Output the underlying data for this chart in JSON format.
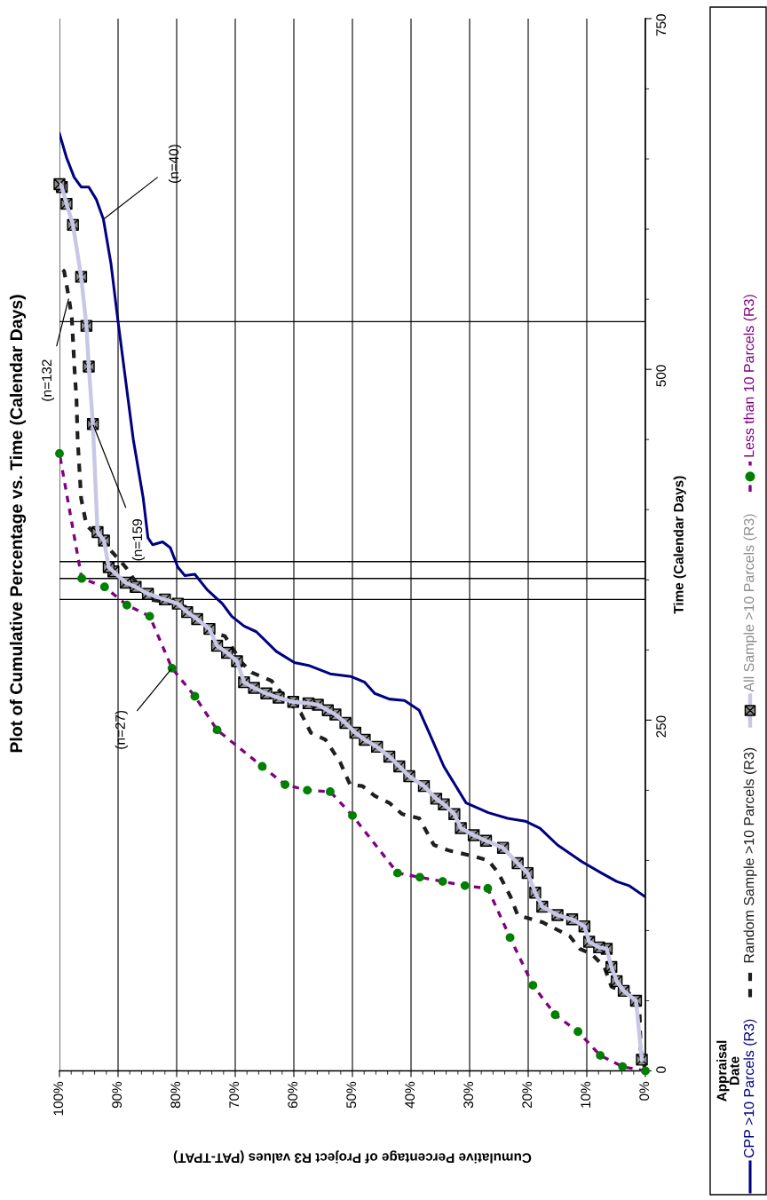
{
  "chart_data": {
    "type": "line",
    "title": "Plot of Cumulative Percentage vs. Time (Calendar Days)",
    "ylabel": "Time (Calendar Days)",
    "xlabel": "Cumulative Percentage of Project R3 values (PAT-TPAT)",
    "ylim": [
      0,
      750
    ],
    "yticks": [
      0,
      250,
      500,
      750
    ],
    "xlim": [
      100,
      0
    ],
    "xticks": [
      {
        "value": 0,
        "label": "0%"
      },
      {
        "value": 10,
        "label": "10%"
      },
      {
        "value": 20,
        "label": "20%"
      },
      {
        "value": 30,
        "label": "30%"
      },
      {
        "value": 40,
        "label": "40%"
      },
      {
        "value": 50,
        "label": "50%"
      },
      {
        "value": 60,
        "label": "60%"
      },
      {
        "value": 70,
        "label": "70%"
      },
      {
        "value": 80,
        "label": "80%"
      },
      {
        "value": 90,
        "label": "90%"
      },
      {
        "value": 100,
        "label": "100%"
      }
    ],
    "grid": "x",
    "legend": "right",
    "series": [
      {
        "name": "CPP >10 Parcels (R3)",
        "color": "#000080",
        "line_style": "solid",
        "marker": "none",
        "values": [
          124,
          132,
          135,
          141,
          149,
          161,
          173,
          178,
          180,
          184,
          191,
          217,
          241,
          257,
          264,
          265,
          269,
          277,
          281,
          283,
          289,
          291,
          299,
          313,
          317,
          324,
          333,
          343,
          354,
          353,
          359,
          373,
          377,
          375,
          380,
          408,
          450,
          479,
          534,
          575,
          607,
          621,
          630,
          630,
          637,
          651,
          668
        ],
        "x": [
          0,
          2.8,
          4.9,
          7.5,
          10.8,
          15.0,
          18.0,
          20.5,
          23.5,
          26.8,
          30.6,
          34.4,
          36.9,
          38.6,
          41.1,
          43.7,
          46.2,
          47.9,
          50.2,
          53.8,
          57.5,
          59.9,
          63.0,
          66.4,
          68.5,
          70.6,
          72.2,
          74.8,
          76.9,
          78.6,
          79.8,
          81.1,
          82.4,
          84.1,
          84.9,
          85.7,
          87.4,
          88.3,
          90.0,
          91.2,
          92.5,
          93.7,
          95.0,
          96.3,
          97.5,
          98.8,
          100
        ]
      },
      {
        "name": "Random Sample >10 Parcels (R3)",
        "color": "#1e1e1e",
        "line_style": "dashed",
        "marker": "none",
        "values": [
          0,
          15,
          45,
          53,
          60,
          74,
          83,
          87,
          96,
          106,
          111,
          124,
          141,
          150,
          153,
          157,
          161,
          180,
          183,
          191,
          196,
          203,
          204,
          220,
          236,
          241,
          255,
          261,
          278,
          284,
          291,
          310,
          312,
          324,
          331,
          334,
          336,
          359,
          375,
          389,
          408,
          450,
          479,
          498,
          537,
          551,
          570,
          573
        ],
        "x": [
          0,
          0.8,
          1.0,
          1.6,
          5.8,
          7.0,
          9.1,
          11.2,
          12.9,
          17.6,
          21.8,
          23.0,
          25.1,
          26.8,
          29.3,
          33.5,
          36.1,
          38.6,
          41.5,
          43.7,
          46.2,
          48.3,
          50.4,
          52.1,
          54.6,
          57.1,
          58.8,
          60.5,
          63.8,
          67.2,
          68.9,
          71.8,
          73.9,
          76.5,
          78.6,
          81.5,
          84.9,
          88.7,
          92.1,
          95.4,
          96.3,
          96.9,
          97.1,
          97.4,
          97.9,
          98.4,
          99.2,
          100
        ]
      },
      {
        "name": "All Sample >10 Parcels (R3)",
        "color": "#c8c8e6",
        "line_style": "solid",
        "marker": "cross",
        "values": [
          8,
          50,
          57,
          64,
          74,
          87,
          88,
          92,
          103,
          108,
          111,
          117,
          127,
          141,
          148,
          159,
          164,
          168,
          173,
          183,
          190,
          194,
          203,
          210,
          217,
          224,
          231,
          236,
          241,
          248,
          254,
          257,
          261,
          262,
          263,
          266,
          269,
          273,
          277,
          292,
          298,
          303,
          315,
          322,
          327,
          333,
          336,
          340,
          345,
          348,
          356,
          359,
          378,
          384,
          461,
          502,
          531,
          566,
          603,
          618,
          630,
          632
        ],
        "x": [
          0.6,
          1.6,
          3.7,
          4.9,
          5.8,
          6.6,
          7.9,
          9.6,
          10.4,
          12.5,
          15.0,
          17.6,
          18.8,
          20.1,
          21.8,
          24.3,
          27.2,
          29.3,
          31.5,
          32.6,
          34.4,
          35.7,
          37.8,
          40.3,
          42.0,
          43.7,
          45.8,
          47.9,
          49.5,
          51.2,
          52.9,
          54.2,
          55.9,
          57.5,
          60.1,
          62.6,
          64.7,
          66.8,
          68.5,
          69.7,
          71.4,
          73.1,
          74.4,
          76.5,
          78.2,
          79.8,
          82.0,
          84.9,
          87.0,
          88.7,
          90.8,
          91.6,
          92.4,
          93.5,
          94.3,
          95.0,
          95.4,
          96.3,
          97.7,
          98.8,
          99.6,
          100
        ],
        "colors": [
          "#8c8c8c",
          "#8c8c8c",
          "#8c8c8c",
          "#8c8c8c",
          "#8c8c8c",
          "#8c8c8c",
          "#8c8c8c",
          "#8c8c8c",
          "#8c8c8c",
          "#8c8c8c",
          "#8c8c8c",
          "#8c8c8c",
          "#8c8c8c",
          "#8c8c8c",
          "#8c8c8c",
          "#8c8c8c",
          "#8c8c8c",
          "#8c8c8c",
          "#8c8c8c",
          "#8c8c8c",
          "#8c8c8c",
          "#8c8c8c",
          "#8c8c8c",
          "#8c8c8c",
          "#8c8c8c",
          "#8c8c8c",
          "#8c8c8c",
          "#8c8c8c",
          "#8c8c8c",
          "#8c8c8c",
          "#8c8c8c",
          "#8c8c8c",
          "#8c8c8c",
          "#8c8c8c",
          "#8c8c8c",
          "#8c8c8c",
          "#8c8c8c",
          "#8c8c8c",
          "#8c8c8c",
          "#8c8c8c",
          "#8c8c8c",
          "#8c8c8c",
          "#8c8c8c",
          "#8c8c8c",
          "#8c8c8c",
          "#8c8c8c",
          "#8c8c8c",
          "#8c8c8c",
          "#8c8c8c",
          "#8c8c8c",
          "#8c8c8c",
          "#8c8c8c",
          "#8c8c8c",
          "#8c8c8c",
          "#8c8c8c",
          "#8c8c8c",
          "#8c8c8c",
          "#8c8c8c",
          "#8c8c8c",
          "#8c8c8c",
          "#8c8c8c",
          "#8c8c8c"
        ]
      },
      {
        "name": "Less than 10 Parcels (R3)",
        "color": "#800080",
        "line_style": "dashed",
        "marker": "circle",
        "values": [
          0,
          3,
          11,
          28,
          40,
          61,
          95,
          130,
          132,
          135,
          138,
          141,
          182,
          199,
          200,
          204,
          217,
          243,
          267,
          287,
          324,
          332,
          345,
          351,
          440
        ],
        "x": [
          0,
          3.9,
          7.7,
          11.5,
          15.4,
          19.2,
          23.1,
          26.9,
          30.8,
          34.6,
          38.5,
          42.3,
          50.0,
          53.8,
          57.7,
          61.5,
          65.4,
          73.1,
          76.9,
          80.8,
          84.6,
          88.5,
          92.3,
          96.2,
          100
        ],
        "colors": [
          "#008000",
          "#008000",
          "#008000",
          "#008000",
          "#008000",
          "#008000",
          "#008000",
          "#008000",
          "#008000",
          "#008000",
          "#008000",
          "#008000",
          "#008000",
          "#008000",
          "#008000",
          "#008000",
          "#008000",
          "#008000",
          "#008000",
          "#008000",
          "#008000",
          "#008000",
          "#008000",
          "#008000",
          "#008000"
        ]
      }
    ],
    "ref_lines": [
      {
        "axis": "y",
        "value": 534,
        "color": "#000000"
      },
      {
        "axis": "y",
        "value": 363,
        "color": "#000000"
      },
      {
        "axis": "y",
        "value": 351,
        "color": "#000000"
      },
      {
        "axis": "y",
        "value": 336,
        "color": "#000000"
      }
    ],
    "annotations": [
      {
        "text": "(n=40)",
        "x": 92.5,
        "y": 607
      },
      {
        "text": "(n=132",
        "x": 98.4,
        "y": 551
      },
      {
        "text": "(n=159",
        "x": 94.3,
        "y": 461
      },
      {
        "text": "(n=27)",
        "x": 80.8,
        "y": 287
      },
      "Appraisal\nDate"
    ]
  }
}
